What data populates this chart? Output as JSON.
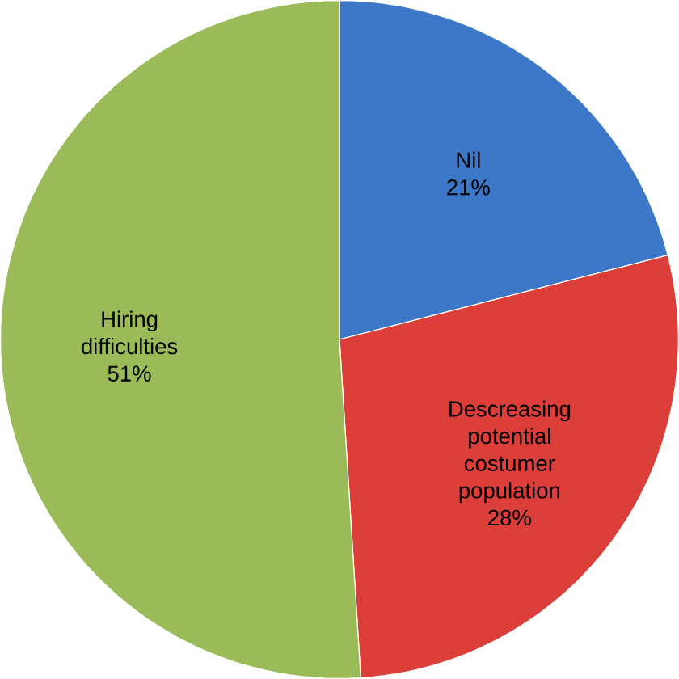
{
  "chart_data": {
    "type": "pie",
    "categories": [
      "Nil",
      "Descreasing potential costumer population",
      "Hiring difficulties"
    ],
    "values": [
      21,
      28,
      51
    ],
    "value_labels": [
      "21%",
      "28%",
      "51%"
    ],
    "colors": [
      "#3d78c8",
      "#dc3f3a",
      "#9bbb59"
    ]
  }
}
